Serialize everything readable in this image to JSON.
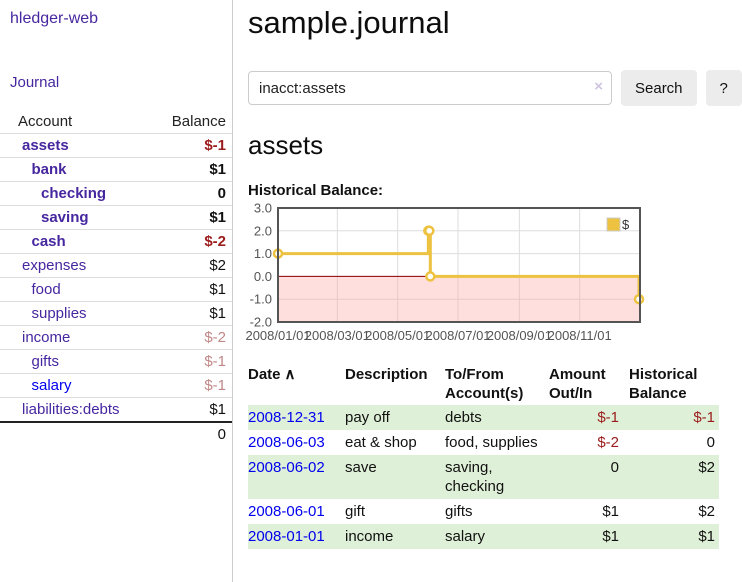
{
  "app": {
    "brand": "hledger-web",
    "nav_journal": "Journal"
  },
  "colors": {
    "link_purple": "#46279f",
    "link_blue": "#0000ee",
    "negative_red": "#9b1c1c",
    "negative_faded": "#c08888",
    "row_shade_green": "#dff0d8",
    "chart_line_gold": "#edc240"
  },
  "sidebar": {
    "header": {
      "account": "Account",
      "balance": "Balance"
    },
    "accounts": [
      {
        "name": "assets",
        "depth": 0,
        "balance": "$-1",
        "bold": true,
        "balance_class": "neg"
      },
      {
        "name": "bank",
        "depth": 1,
        "balance": "$1",
        "bold": true,
        "balance_class": ""
      },
      {
        "name": "checking",
        "depth": 2,
        "balance": "0",
        "bold": true,
        "balance_class": ""
      },
      {
        "name": "saving",
        "depth": 2,
        "balance": "$1",
        "bold": true,
        "balance_class": ""
      },
      {
        "name": "cash",
        "depth": 1,
        "balance": "$-2",
        "bold": true,
        "balance_class": "neg"
      },
      {
        "name": "expenses",
        "depth": 0,
        "balance": "$2",
        "bold": false,
        "balance_class": ""
      },
      {
        "name": "food",
        "depth": 1,
        "balance": "$1",
        "bold": false,
        "balance_class": ""
      },
      {
        "name": "supplies",
        "depth": 1,
        "balance": "$1",
        "bold": false,
        "balance_class": ""
      },
      {
        "name": "income",
        "depth": 0,
        "balance": "$-2",
        "bold": false,
        "balance_class": "negfade"
      },
      {
        "name": "gifts",
        "depth": 1,
        "balance": "$-1",
        "bold": false,
        "balance_class": "negfade"
      },
      {
        "name": "salary",
        "depth": 1,
        "balance": "$-1",
        "bold": false,
        "balance_class": "negfade",
        "link_color": "blue"
      },
      {
        "name": "liabilities:debts",
        "depth": 0,
        "balance": "$1",
        "bold": false,
        "balance_class": ""
      }
    ],
    "total": "0"
  },
  "header": {
    "title": "sample.journal"
  },
  "search": {
    "value": "inacct:assets",
    "clear_icon": "×",
    "button_label": "Search",
    "help_label": "?"
  },
  "main": {
    "account_title": "assets",
    "chart_label": "Historical Balance:"
  },
  "chart_data": {
    "type": "line",
    "steps": true,
    "title": "Historical Balance:",
    "series": [
      {
        "name": "$",
        "color": "#edc240",
        "points": [
          {
            "date": "2008-01-01",
            "value": 1
          },
          {
            "date": "2008-06-01",
            "value": 2
          },
          {
            "date": "2008-06-02",
            "value": 2
          },
          {
            "date": "2008-06-03",
            "value": 0
          },
          {
            "date": "2008-12-31",
            "value": -1
          }
        ]
      }
    ],
    "xlim": [
      "2008-01-01",
      "2009-01-01"
    ],
    "ylim": [
      -2,
      3
    ],
    "yticks": [
      {
        "label": "3.0",
        "value": 3
      },
      {
        "label": "2.0",
        "value": 2
      },
      {
        "label": "1.0",
        "value": 1
      },
      {
        "label": "0.0",
        "value": 0
      },
      {
        "label": "-1.0",
        "value": -1
      },
      {
        "label": "-2.0",
        "value": -2
      }
    ],
    "xticks": [
      {
        "label": "2008/01/01",
        "date": "2008-01-01"
      },
      {
        "label": "2008/03/01",
        "date": "2008-03-01"
      },
      {
        "label": "2008/05/01",
        "date": "2008-05-01"
      },
      {
        "label": "2008/07/01",
        "date": "2008-07-01"
      },
      {
        "label": "2008/09/01",
        "date": "2008-09-01"
      },
      {
        "label": "2008/11/01",
        "date": "2008-11-01"
      }
    ],
    "grid": true,
    "legend": {
      "label": "$",
      "position": "top-right"
    },
    "negative_region_fill": "rgba(255,160,160,0.35)",
    "zero_line_color": "#8b0000",
    "border_color": "#545454",
    "gridline_color": "#dddddd"
  },
  "register": {
    "sort_icon": "∧",
    "headers": {
      "date": "Date",
      "description": "Description",
      "accounts": "To/From Account(s)",
      "amount": "Amount Out/In",
      "balance": "Historical Balance"
    },
    "rows": [
      {
        "date": "2008-12-31",
        "description": "pay off",
        "accounts": "debts",
        "amount": "$-1",
        "amount_negative": true,
        "balance": "$-1",
        "balance_negative": true,
        "shaded": true
      },
      {
        "date": "2008-06-03",
        "description": "eat & shop",
        "accounts": "food, supplies",
        "amount": "$-2",
        "amount_negative": true,
        "balance": "0",
        "balance_negative": false,
        "shaded": false
      },
      {
        "date": "2008-06-02",
        "description": "save",
        "accounts": "saving, checking",
        "amount": "0",
        "amount_negative": false,
        "balance": "$2",
        "balance_negative": false,
        "shaded": true
      },
      {
        "date": "2008-06-01",
        "description": "gift",
        "accounts": "gifts",
        "amount": "$1",
        "amount_negative": false,
        "balance": "$2",
        "balance_negative": false,
        "shaded": false
      },
      {
        "date": "2008-01-01",
        "description": "income",
        "accounts": "salary",
        "amount": "$1",
        "amount_negative": false,
        "balance": "$1",
        "balance_negative": false,
        "shaded": true
      }
    ]
  }
}
